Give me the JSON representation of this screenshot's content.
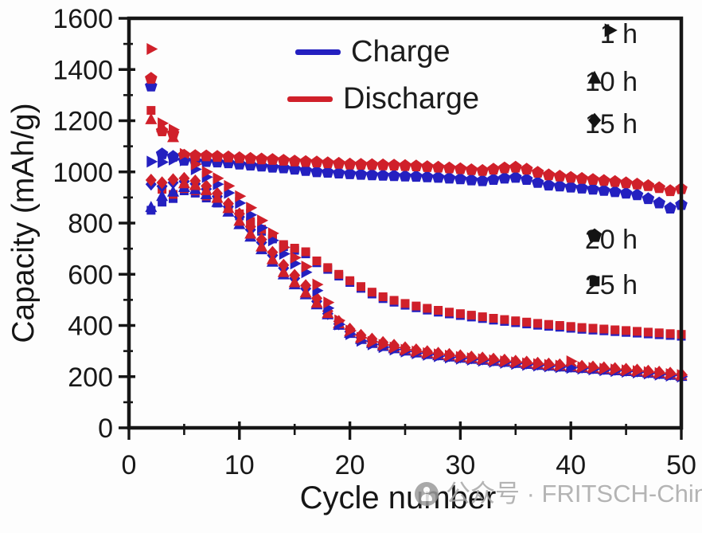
{
  "figure": {
    "watermark": {
      "text": "公众号 · FRITSCH-China",
      "icon": "wechat-official-account-icon",
      "color": "#a8a8a8"
    }
  },
  "chart_data": {
    "type": "scatter",
    "title": "",
    "xlabel": "Cycle number",
    "ylabel": "Capacity (mAh/g)",
    "xlim": [
      0,
      50
    ],
    "ylim": [
      0,
      1600
    ],
    "x_major_ticks": [
      0,
      10,
      20,
      30,
      40,
      50
    ],
    "x_minor_ticks": [
      5,
      15,
      25,
      35,
      45
    ],
    "y_major_ticks": [
      0,
      200,
      400,
      600,
      800,
      1000,
      1200,
      1400,
      1600
    ],
    "y_minor_ticks": [
      100,
      300,
      500,
      700,
      900,
      1100,
      1300,
      1500
    ],
    "grid": false,
    "legend_position": "top-center-inside",
    "colors": {
      "charge": "#2420c0",
      "discharge": "#d0202a",
      "legend_marker": "#141414",
      "axis": "#161616"
    },
    "legend": [
      {
        "label": "Charge",
        "color": "#2420c0"
      },
      {
        "label": "Discharge",
        "color": "#d0202a"
      }
    ],
    "time_legend": [
      {
        "label": "1 h",
        "marker": "right-triangle"
      },
      {
        "label": "10 h",
        "marker": "up-triangle"
      },
      {
        "label": "15 h",
        "marker": "diamond"
      },
      {
        "label": "20 h",
        "marker": "pentagon"
      },
      {
        "label": "25 h",
        "marker": "square"
      }
    ],
    "cycles_start": 2,
    "series": [
      {
        "name": "20h-charge",
        "milling_time": "20 h",
        "kind": "charge",
        "marker": "pentagon",
        "color": "#2420c0",
        "values": [
          1335,
          1070,
          1060,
          1045,
          1042,
          1040,
          1038,
          1035,
          1030,
          1026,
          1022,
          1018,
          1015,
          1010,
          1005,
          1000,
          998,
          995,
          992,
          990,
          988,
          986,
          985,
          983,
          982,
          980,
          978,
          975,
          972,
          968,
          965,
          970,
          975,
          978,
          970,
          958,
          948,
          944,
          940,
          936,
          932,
          927,
          922,
          916,
          910,
          895,
          878,
          858,
          872
        ]
      },
      {
        "name": "20h-discharge",
        "milling_time": "20 h",
        "kind": "discharge",
        "marker": "pentagon",
        "color": "#d0202a",
        "values": [
          1365,
          1160,
          1150,
          1065,
          1063,
          1062,
          1060,
          1058,
          1055,
          1052,
          1050,
          1048,
          1045,
          1042,
          1040,
          1038,
          1035,
          1033,
          1030,
          1029,
          1028,
          1027,
          1026,
          1024,
          1023,
          1020,
          1018,
          1015,
          1012,
          1008,
          1005,
          1010,
          1015,
          1018,
          1010,
          998,
          988,
          983,
          978,
          974,
          970,
          966,
          962,
          957,
          952,
          946,
          938,
          926,
          934
        ]
      },
      {
        "name": "25h-charge",
        "milling_time": "25 h",
        "kind": "charge",
        "marker": "square",
        "color": "#2420c0",
        "values": [
          850,
          882,
          896,
          926,
          917,
          898,
          878,
          858,
          828,
          798,
          768,
          738,
          708,
          694,
          680,
          645,
          619,
          593,
          568,
          545,
          523,
          505,
          491,
          479,
          469,
          460,
          452,
          445,
          439,
          433,
          427,
          421,
          416,
          411,
          406,
          401,
          397,
          393,
          389,
          385,
          382,
          379,
          376,
          373,
          370,
          367,
          364,
          361,
          358
        ]
      },
      {
        "name": "25h-discharge",
        "milling_time": "25 h",
        "kind": "discharge",
        "marker": "square",
        "color": "#d0202a",
        "values": [
          1240,
          932,
          912,
          935,
          926,
          906,
          886,
          866,
          836,
          806,
          776,
          746,
          716,
          702,
          688,
          652,
          626,
          600,
          575,
          552,
          530,
          512,
          498,
          486,
          476,
          467,
          459,
          452,
          446,
          440,
          434,
          428,
          423,
          418,
          413,
          408,
          404,
          400,
          396,
          392,
          389,
          386,
          383,
          380,
          377,
          374,
          371,
          368,
          365
        ]
      },
      {
        "name": "15h-charge",
        "milling_time": "15 h",
        "kind": "charge",
        "marker": "diamond",
        "color": "#2420c0",
        "values": [
          952,
          944,
          958,
          963,
          953,
          933,
          904,
          864,
          824,
          774,
          724,
          674,
          624,
          584,
          544,
          494,
          446,
          406,
          376,
          353,
          338,
          326,
          316,
          307,
          300,
          293,
          287,
          282,
          277,
          273,
          269,
          265,
          261,
          257,
          253,
          249,
          246,
          243,
          240,
          237,
          234,
          231,
          228,
          225,
          222,
          218,
          214,
          210,
          206
        ]
      },
      {
        "name": "15h-discharge",
        "milling_time": "15 h",
        "kind": "discharge",
        "marker": "diamond",
        "color": "#d0202a",
        "values": [
          968,
          958,
          970,
          975,
          965,
          945,
          916,
          876,
          836,
          786,
          736,
          686,
          636,
          596,
          556,
          506,
          456,
          416,
          386,
          362,
          347,
          334,
          323,
          313,
          305,
          298,
          292,
          287,
          282,
          277,
          273,
          269,
          265,
          261,
          257,
          253,
          250,
          247,
          244,
          241,
          238,
          235,
          232,
          229,
          226,
          222,
          218,
          214,
          210
        ]
      },
      {
        "name": "10h-charge",
        "milling_time": "10 h",
        "kind": "charge",
        "marker": "up-triangle",
        "color": "#2420c0",
        "values": [
          862,
          905,
          922,
          940,
          932,
          912,
          882,
          844,
          795,
          746,
          697,
          648,
          599,
          560,
          521,
          482,
          443,
          402,
          370,
          346,
          331,
          319,
          310,
          301,
          294,
          288,
          283,
          278,
          273,
          269,
          265,
          261,
          257,
          253,
          249,
          245,
          242,
          239,
          236,
          233,
          230,
          227,
          224,
          221,
          218,
          214,
          210,
          206,
          202
        ]
      },
      {
        "name": "10h-discharge",
        "milling_time": "10 h",
        "kind": "discharge",
        "marker": "up-triangle",
        "color": "#d0202a",
        "values": [
          1205,
          1175,
          1135,
          955,
          948,
          928,
          898,
          858,
          808,
          758,
          708,
          658,
          608,
          568,
          528,
          488,
          448,
          408,
          376,
          352,
          337,
          325,
          315,
          306,
          299,
          293,
          288,
          283,
          278,
          274,
          270,
          266,
          262,
          258,
          254,
          250,
          247,
          244,
          241,
          238,
          235,
          232,
          229,
          226,
          223,
          219,
          215,
          211,
          207
        ]
      },
      {
        "name": "1h-charge",
        "milling_time": "1 h",
        "kind": "charge",
        "marker": "right-triangle",
        "color": "#2420c0",
        "values": [
          1040,
          1038,
          1048,
          1045,
          1010,
          980,
          952,
          918,
          878,
          832,
          782,
          732,
          680,
          642,
          608,
          536,
          468,
          404,
          366,
          340,
          326,
          315,
          306,
          298,
          291,
          285,
          280,
          275,
          270,
          266,
          262,
          258,
          254,
          250,
          246,
          243,
          240,
          237,
          234,
          231,
          228,
          225,
          222,
          219,
          216,
          212,
          208,
          204,
          200
        ]
      },
      {
        "name": "1h-discharge",
        "milling_time": "1 h",
        "kind": "discharge",
        "marker": "right-triangle",
        "color": "#d0202a",
        "values": [
          1480,
          1190,
          1165,
          1070,
          1030,
          1000,
          975,
          945,
          905,
          860,
          810,
          760,
          705,
          665,
          630,
          560,
          490,
          420,
          380,
          352,
          336,
          324,
          314,
          305,
          298,
          292,
          287,
          282,
          277,
          272,
          268,
          264,
          260,
          256,
          252,
          249,
          246,
          243,
          260,
          237,
          234,
          231,
          228,
          225,
          222,
          218,
          214,
          210,
          206
        ]
      }
    ]
  }
}
